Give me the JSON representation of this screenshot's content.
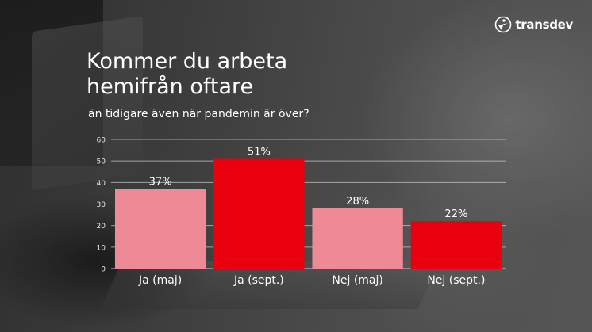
{
  "brand": {
    "name": "transdev"
  },
  "title": "Kommer du arbeta hemifrån oftare",
  "subtitle": "än tidigare även när pandemin är över?",
  "colors": {
    "light": "#ee8a96",
    "dark": "#e8000f",
    "text": "#ffffff"
  },
  "chart_data": {
    "type": "bar",
    "title": "Kommer du arbeta hemifrån oftare",
    "subtitle": "än tidigare även när pandemin är över?",
    "categories": [
      "Ja (maj)",
      "Ja (sept.)",
      "Nej (maj)",
      "Nej (sept.)"
    ],
    "values": [
      37,
      51,
      28,
      22
    ],
    "value_labels": [
      "37%",
      "51%",
      "28%",
      "22%"
    ],
    "bar_colors": [
      "#ee8a96",
      "#e8000f",
      "#ee8a96",
      "#e8000f"
    ],
    "ylim": [
      0,
      60
    ],
    "yticks": [
      0,
      10,
      20,
      30,
      40,
      50,
      60
    ],
    "xlabel": "",
    "ylabel": "",
    "grid": true
  }
}
